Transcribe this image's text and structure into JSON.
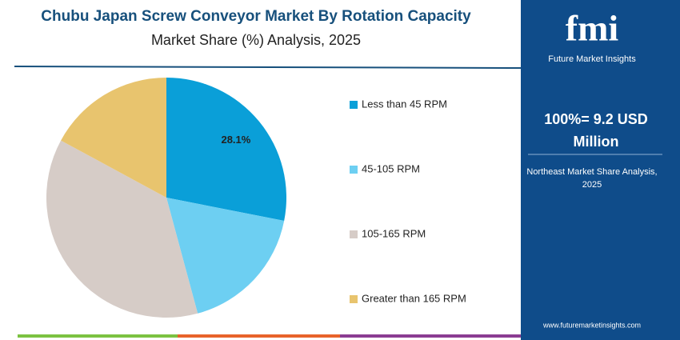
{
  "chart_data": {
    "type": "pie",
    "title": "Chubu Japan Screw Conveyor Market By Rotation Capacity",
    "subtitle": "Market Share (%) Analysis, 2025",
    "categories": [
      "Less than 45 RPM",
      "45-105 RPM",
      "105-165 RPM",
      "Greater than 165 RPM"
    ],
    "values": [
      28.1,
      17.7,
      37.1,
      17.1
    ],
    "value_labels": [
      "28.1%",
      null,
      null,
      null
    ],
    "colors": [
      "#0a9fd8",
      "#6dcff2",
      "#d6ccc7",
      "#e8c46e"
    ],
    "legend": "right"
  },
  "panel": {
    "logo": "fmi",
    "brand": "Future Market Insights",
    "headline": "100%= 9.2 USD Million",
    "caption": "Northeast Market Share Analysis, 2025",
    "url": "www.futuremarketinsights.com"
  }
}
